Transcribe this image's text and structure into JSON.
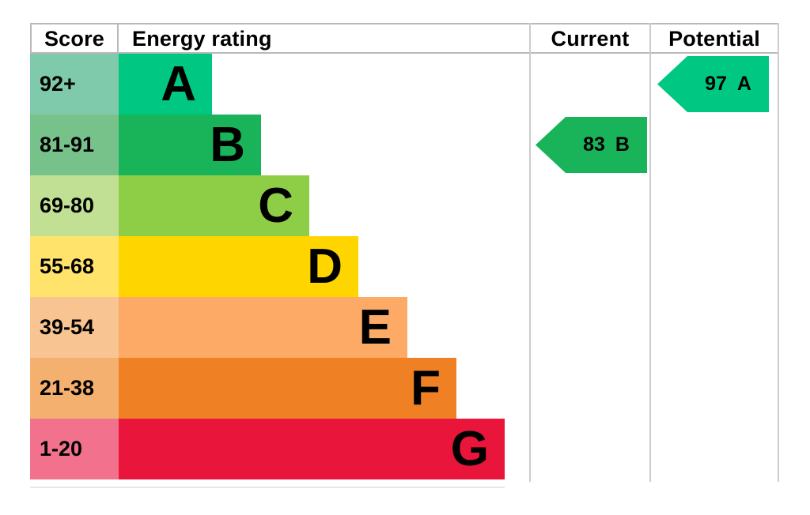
{
  "header": {
    "score": "Score",
    "energy_rating": "Energy rating",
    "current": "Current",
    "potential": "Potential"
  },
  "bands": [
    {
      "score_range": "92+",
      "letter": "A",
      "color": "#00c781",
      "score_bg": "#7ecaaa"
    },
    {
      "score_range": "81-91",
      "letter": "B",
      "color": "#19b459",
      "score_bg": "#77c28b"
    },
    {
      "score_range": "69-80",
      "letter": "C",
      "color": "#8dce46",
      "score_bg": "#c2e094"
    },
    {
      "score_range": "55-68",
      "letter": "D",
      "color": "#ffd500",
      "score_bg": "#ffe36b"
    },
    {
      "score_range": "39-54",
      "letter": "E",
      "color": "#fcaa65",
      "score_bg": "#f8c491"
    },
    {
      "score_range": "21-38",
      "letter": "F",
      "color": "#ef8023",
      "score_bg": "#f4b06e"
    },
    {
      "score_range": "1-20",
      "letter": "G",
      "color": "#e9153b",
      "score_bg": "#f2728d"
    }
  ],
  "current": {
    "score": "83",
    "band": "B"
  },
  "potential": {
    "score": "97",
    "band": "A"
  },
  "border_colors": {
    "header": "#b9b9b9",
    "columns": "#cccccc",
    "bottom": "#e7e7e7"
  },
  "chart_data": {
    "type": "bar",
    "title": "EPC energy efficiency rating chart",
    "columns": [
      "Score",
      "Energy rating",
      "Current",
      "Potential"
    ],
    "categories": [
      "A",
      "B",
      "C",
      "D",
      "E",
      "F",
      "G"
    ],
    "score_ranges": [
      "92+",
      "81-91",
      "69-80",
      "55-68",
      "39-54",
      "21-38",
      "1-20"
    ],
    "band_colors": [
      "#00c781",
      "#19b459",
      "#8dce46",
      "#ffd500",
      "#fcaa65",
      "#ef8023",
      "#e9153b"
    ],
    "bar_relative_lengths": [
      1,
      2,
      3,
      4,
      5,
      6,
      7
    ],
    "current_rating": {
      "value": 83,
      "band": "B"
    },
    "potential_rating": {
      "value": 97,
      "band": "A"
    },
    "orientation": "horizontal",
    "legend": "off",
    "grid": "off"
  }
}
